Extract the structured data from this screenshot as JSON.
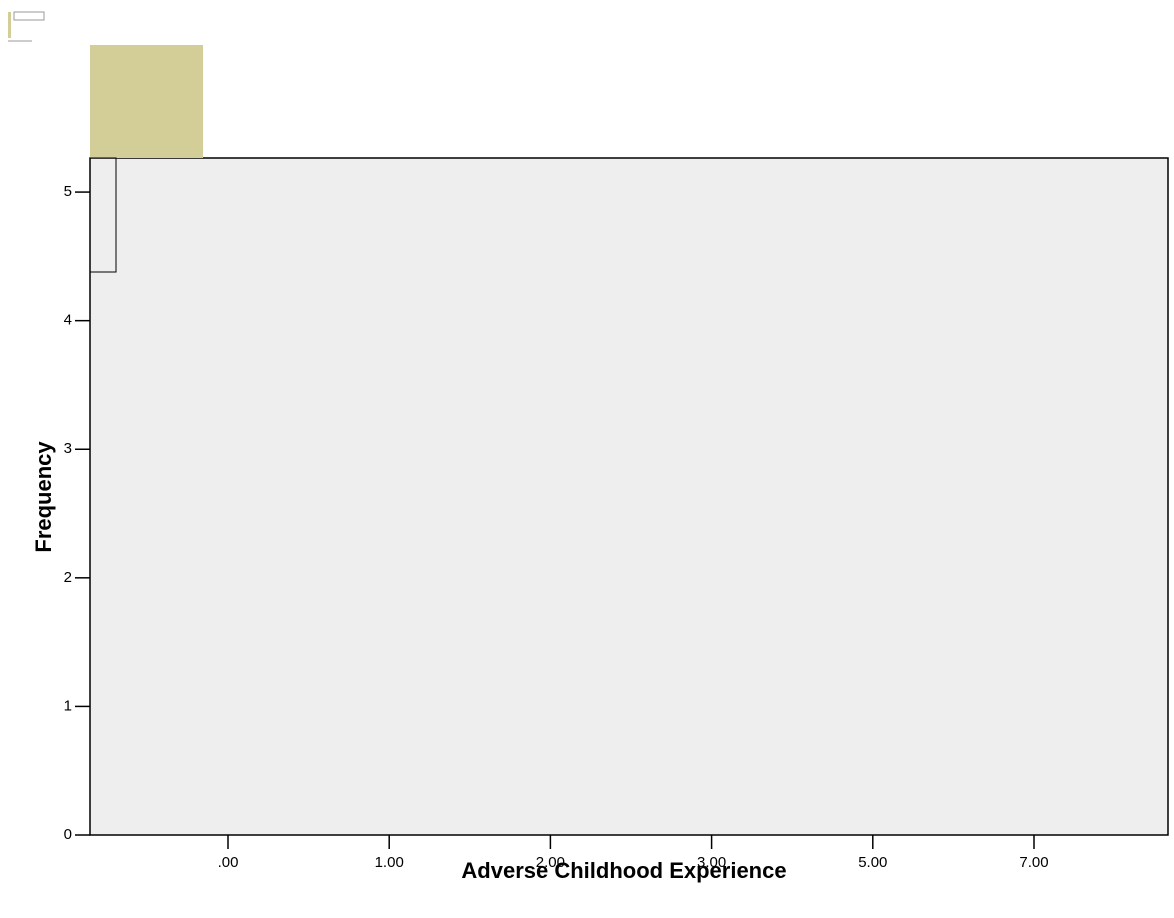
{
  "chart_data": {
    "type": "bar",
    "x_label": "Adverse Childhood Experience",
    "y_label": "Frequency",
    "categories": [
      ".00",
      "1.00",
      "2.00",
      "3.00",
      "5.00",
      "7.00"
    ],
    "ylim": [
      0,
      5.265
    ],
    "yticks": [
      0,
      1,
      2,
      3,
      4,
      5
    ],
    "plot_color": "#eeeeee",
    "bar_color": "#d3ce97"
  }
}
